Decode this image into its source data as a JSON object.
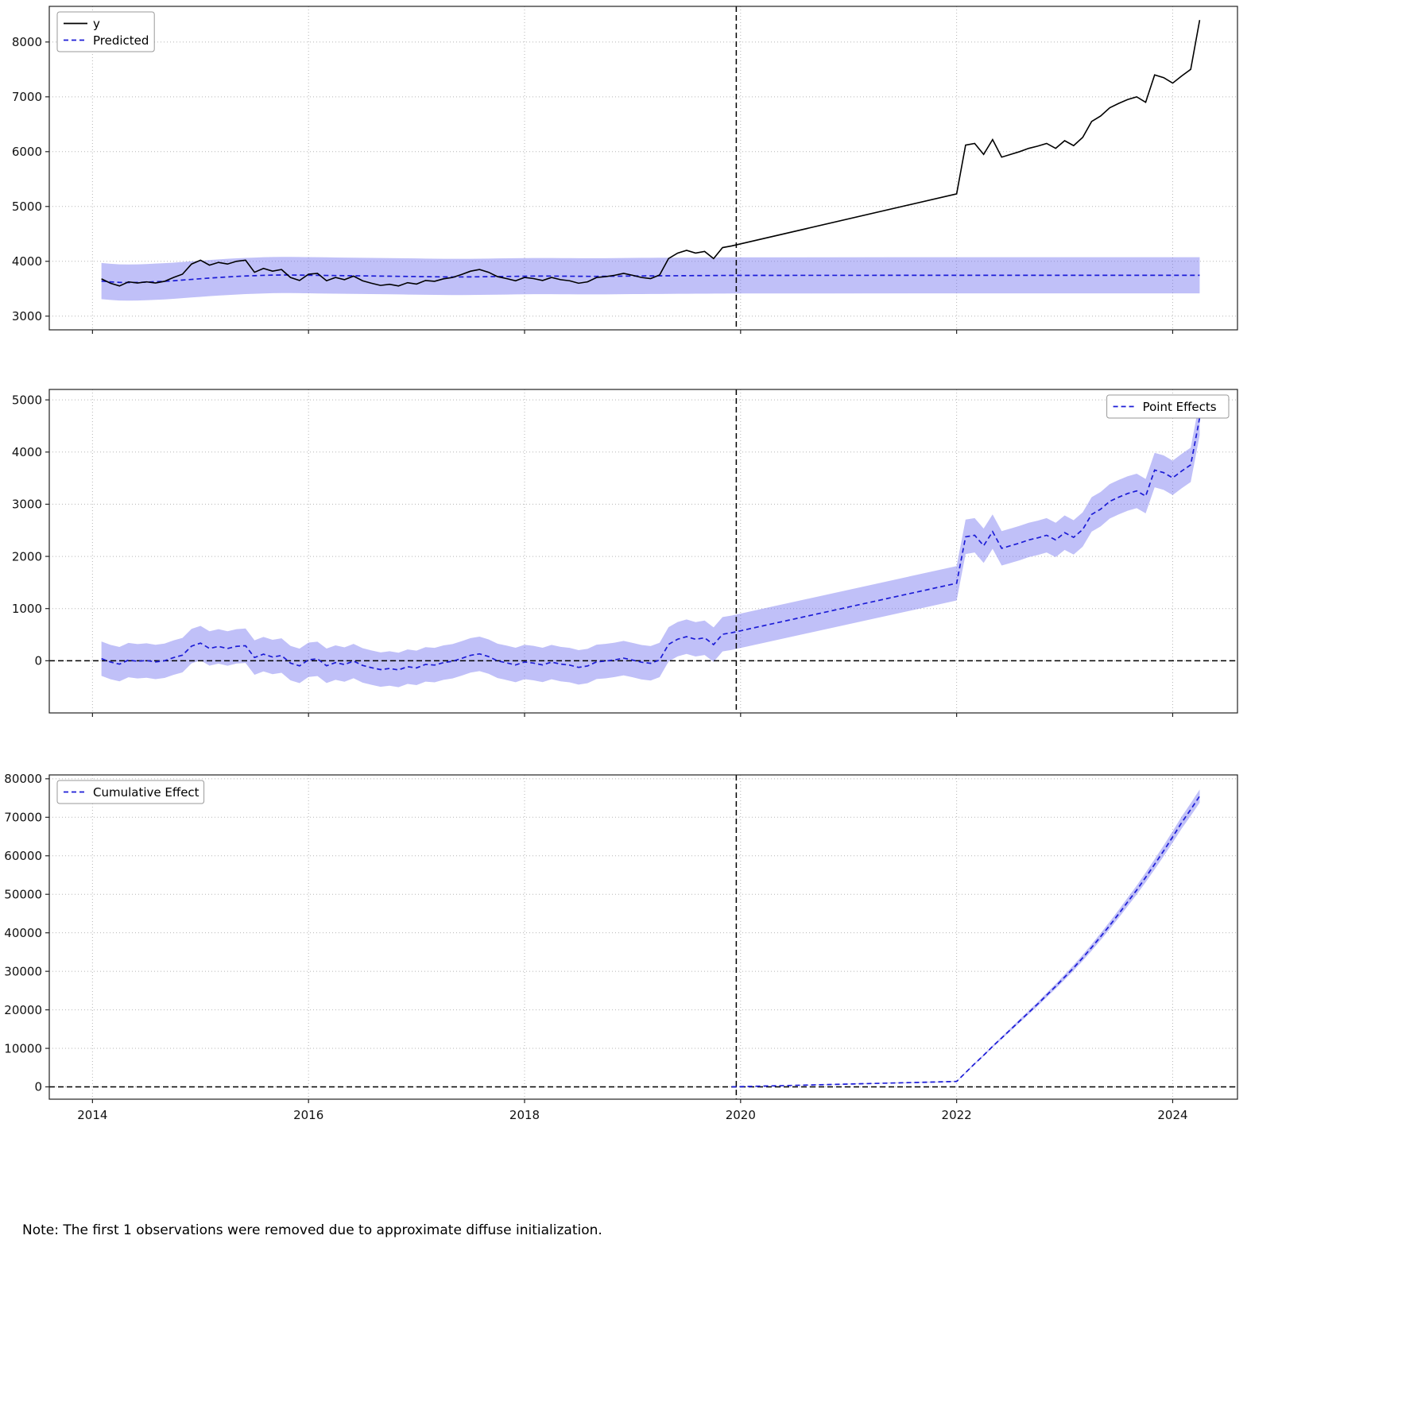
{
  "note": "Note: The first 1 observations were removed due to approximate diffuse initialization.",
  "colors": {
    "observed": "#000000",
    "predicted": "#1c1cd6",
    "band": "#6a6aee",
    "grid": "#b5b5b5",
    "reference_lines": "#000000",
    "spine": "#222222"
  },
  "xlim": [
    2013.6,
    2024.6
  ],
  "x_ticks": [
    2014,
    2016,
    2018,
    2020,
    2022,
    2024
  ],
  "intervention_x": 2019.96,
  "x_monthly": [
    2014.083,
    2014.167,
    2014.25,
    2014.333,
    2014.417,
    2014.5,
    2014.583,
    2014.667,
    2014.75,
    2014.833,
    2014.917,
    2015.0,
    2015.083,
    2015.167,
    2015.25,
    2015.333,
    2015.417,
    2015.5,
    2015.583,
    2015.667,
    2015.75,
    2015.833,
    2015.917,
    2016.0,
    2016.083,
    2016.167,
    2016.25,
    2016.333,
    2016.417,
    2016.5,
    2016.583,
    2016.667,
    2016.75,
    2016.833,
    2016.917,
    2017.0,
    2017.083,
    2017.167,
    2017.25,
    2017.333,
    2017.417,
    2017.5,
    2017.583,
    2017.667,
    2017.75,
    2017.833,
    2017.917,
    2018.0,
    2018.083,
    2018.167,
    2018.25,
    2018.333,
    2018.417,
    2018.5,
    2018.583,
    2018.667,
    2018.75,
    2018.833,
    2018.917,
    2019.0,
    2019.083,
    2019.167,
    2019.25,
    2019.333,
    2019.417,
    2019.5,
    2019.583,
    2019.667,
    2019.75,
    2019.833,
    2019.917,
    2022.0,
    2022.083,
    2022.167,
    2022.25,
    2022.333,
    2022.417,
    2022.5,
    2022.583,
    2022.667,
    2022.75,
    2022.833,
    2022.917,
    2023.0,
    2023.083,
    2023.167,
    2023.25,
    2023.333,
    2023.417,
    2023.5,
    2023.583,
    2023.667,
    2023.75,
    2023.833,
    2023.917,
    2024.0,
    2024.083,
    2024.167,
    2024.25
  ],
  "chart_data": [
    {
      "type": "line",
      "id": "original",
      "ylim": [
        2750,
        8650
      ],
      "yticks": [
        3000,
        4000,
        5000,
        6000,
        7000,
        8000
      ],
      "legend_pos": "top-left",
      "legend": [
        {
          "label": "y",
          "color": "#000000",
          "dash": false
        },
        {
          "label": "Predicted",
          "color": "#1c1cd6",
          "dash": true
        }
      ],
      "series": {
        "x": "monthly",
        "observed": [
          3680,
          3600,
          3550,
          3625,
          3605,
          3625,
          3605,
          3635,
          3705,
          3765,
          3950,
          4020,
          3930,
          3980,
          3950,
          4000,
          4020,
          3800,
          3870,
          3820,
          3850,
          3705,
          3650,
          3765,
          3780,
          3645,
          3705,
          3665,
          3730,
          3645,
          3600,
          3560,
          3580,
          3550,
          3610,
          3585,
          3650,
          3635,
          3680,
          3705,
          3760,
          3820,
          3850,
          3800,
          3720,
          3685,
          3645,
          3705,
          3685,
          3650,
          3705,
          3665,
          3645,
          3600,
          3625,
          3705,
          3720,
          3745,
          3780,
          3745,
          3705,
          3685,
          3750,
          4050,
          4150,
          4200,
          4150,
          4180,
          4050,
          4250,
          4280,
          5230,
          6120,
          6150,
          5950,
          6220,
          5900,
          5950,
          6000,
          6060,
          6100,
          6150,
          6060,
          6200,
          6110,
          6260,
          6550,
          6650,
          6800,
          6880,
          6950,
          7000,
          6900,
          7400,
          7350,
          7250,
          7380,
          7500,
          8400
        ],
        "predicted": [
          3640,
          3625,
          3615,
          3612,
          3615,
          3620,
          3628,
          3635,
          3645,
          3658,
          3670,
          3682,
          3694,
          3705,
          3715,
          3724,
          3732,
          3738,
          3744,
          3748,
          3750,
          3750,
          3748,
          3746,
          3744,
          3742,
          3740,
          3738,
          3736,
          3734,
          3732,
          3730,
          3728,
          3726,
          3724,
          3722,
          3720,
          3718,
          3716,
          3715,
          3715,
          3716,
          3718,
          3720,
          3722,
          3724,
          3726,
          3728,
          3730,
          3730,
          3730,
          3729,
          3728,
          3727,
          3726,
          3726,
          3727,
          3728,
          3730,
          3732,
          3733,
          3734,
          3735,
          3736,
          3737,
          3738,
          3739,
          3740,
          3741,
          3742,
          3743,
          3745,
          3745,
          3745,
          3745,
          3745,
          3745,
          3745,
          3745,
          3745,
          3745,
          3745,
          3745,
          3745,
          3745,
          3745,
          3745,
          3745,
          3745,
          3745,
          3745,
          3745,
          3745,
          3745,
          3745,
          3745,
          3745,
          3745,
          3745
        ],
        "ci_half_width": 330
      }
    },
    {
      "type": "line",
      "id": "pointwise",
      "ylim": [
        -1000,
        5200
      ],
      "yticks": [
        0,
        1000,
        2000,
        3000,
        4000,
        5000
      ],
      "legend_pos": "top-right",
      "legend": [
        {
          "label": "Point Effects",
          "color": "#1c1cd6",
          "dash": true
        }
      ],
      "hline": 0,
      "series": {
        "x": "monthly",
        "effect": [
          40,
          -25,
          -65,
          13,
          -10,
          5,
          -23,
          0,
          60,
          107,
          280,
          338,
          236,
          275,
          235,
          276,
          288,
          62,
          126,
          72,
          100,
          -45,
          -98,
          19,
          36,
          -97,
          -35,
          -73,
          -6,
          -89,
          -132,
          -170,
          -148,
          -176,
          -114,
          -137,
          -70,
          -83,
          -36,
          -10,
          45,
          104,
          132,
          80,
          -2,
          -39,
          -81,
          -23,
          -45,
          -80,
          -25,
          -64,
          -83,
          -127,
          -101,
          -21,
          -7,
          17,
          50,
          13,
          -28,
          -49,
          15,
          314,
          413,
          462,
          411,
          440,
          309,
          508,
          537,
          1485,
          2375,
          2405,
          2205,
          2475,
          2155,
          2205,
          2255,
          2315,
          2355,
          2405,
          2315,
          2455,
          2365,
          2515,
          2805,
          2905,
          3055,
          3135,
          3205,
          3255,
          3155,
          3655,
          3605,
          3505,
          3635,
          3755,
          4655
        ],
        "ci_half_width": 330
      }
    },
    {
      "type": "line",
      "id": "cumulative",
      "ylim": [
        -3200,
        81000
      ],
      "yticks": [
        0,
        10000,
        20000,
        30000,
        40000,
        50000,
        60000,
        70000,
        80000
      ],
      "legend_pos": "top-left",
      "legend": [
        {
          "label": "Cumulative Effect",
          "color": "#1c1cd6",
          "dash": true
        }
      ],
      "hline": 0,
      "series": {
        "x": [
          2019.917,
          2022.0,
          2022.083,
          2022.167,
          2022.25,
          2022.333,
          2022.417,
          2022.5,
          2022.583,
          2022.667,
          2022.75,
          2022.833,
          2022.917,
          2023.0,
          2023.083,
          2023.167,
          2023.25,
          2023.333,
          2023.417,
          2023.5,
          2023.583,
          2023.667,
          2023.75,
          2023.833,
          2023.917,
          2024.0,
          2024.083,
          2024.167,
          2024.25
        ],
        "effect": [
          0,
          1400,
          3700,
          6000,
          8200,
          10500,
          12700,
          14900,
          17100,
          19300,
          21500,
          23800,
          26100,
          28500,
          30900,
          33500,
          36200,
          39000,
          41900,
          44900,
          48000,
          51100,
          54400,
          57800,
          61300,
          64900,
          68600,
          72000,
          75500
        ],
        "ci_lower": [
          0,
          1310,
          3570,
          5820,
          7970,
          10220,
          12370,
          14520,
          16670,
          18830,
          20980,
          23230,
          25480,
          27820,
          30170,
          32710,
          35350,
          38090,
          40930,
          43870,
          46890,
          49930,
          53150,
          56480,
          59900,
          63420,
          67040,
          70360,
          73790
        ],
        "ci_upper": [
          0,
          1490,
          3830,
          6180,
          8430,
          10780,
          13030,
          15280,
          17530,
          19770,
          22020,
          24370,
          26720,
          29180,
          31630,
          34290,
          37050,
          39910,
          42870,
          45930,
          49110,
          52270,
          55650,
          59120,
          62700,
          66380,
          70160,
          73640,
          77210
        ]
      }
    }
  ]
}
